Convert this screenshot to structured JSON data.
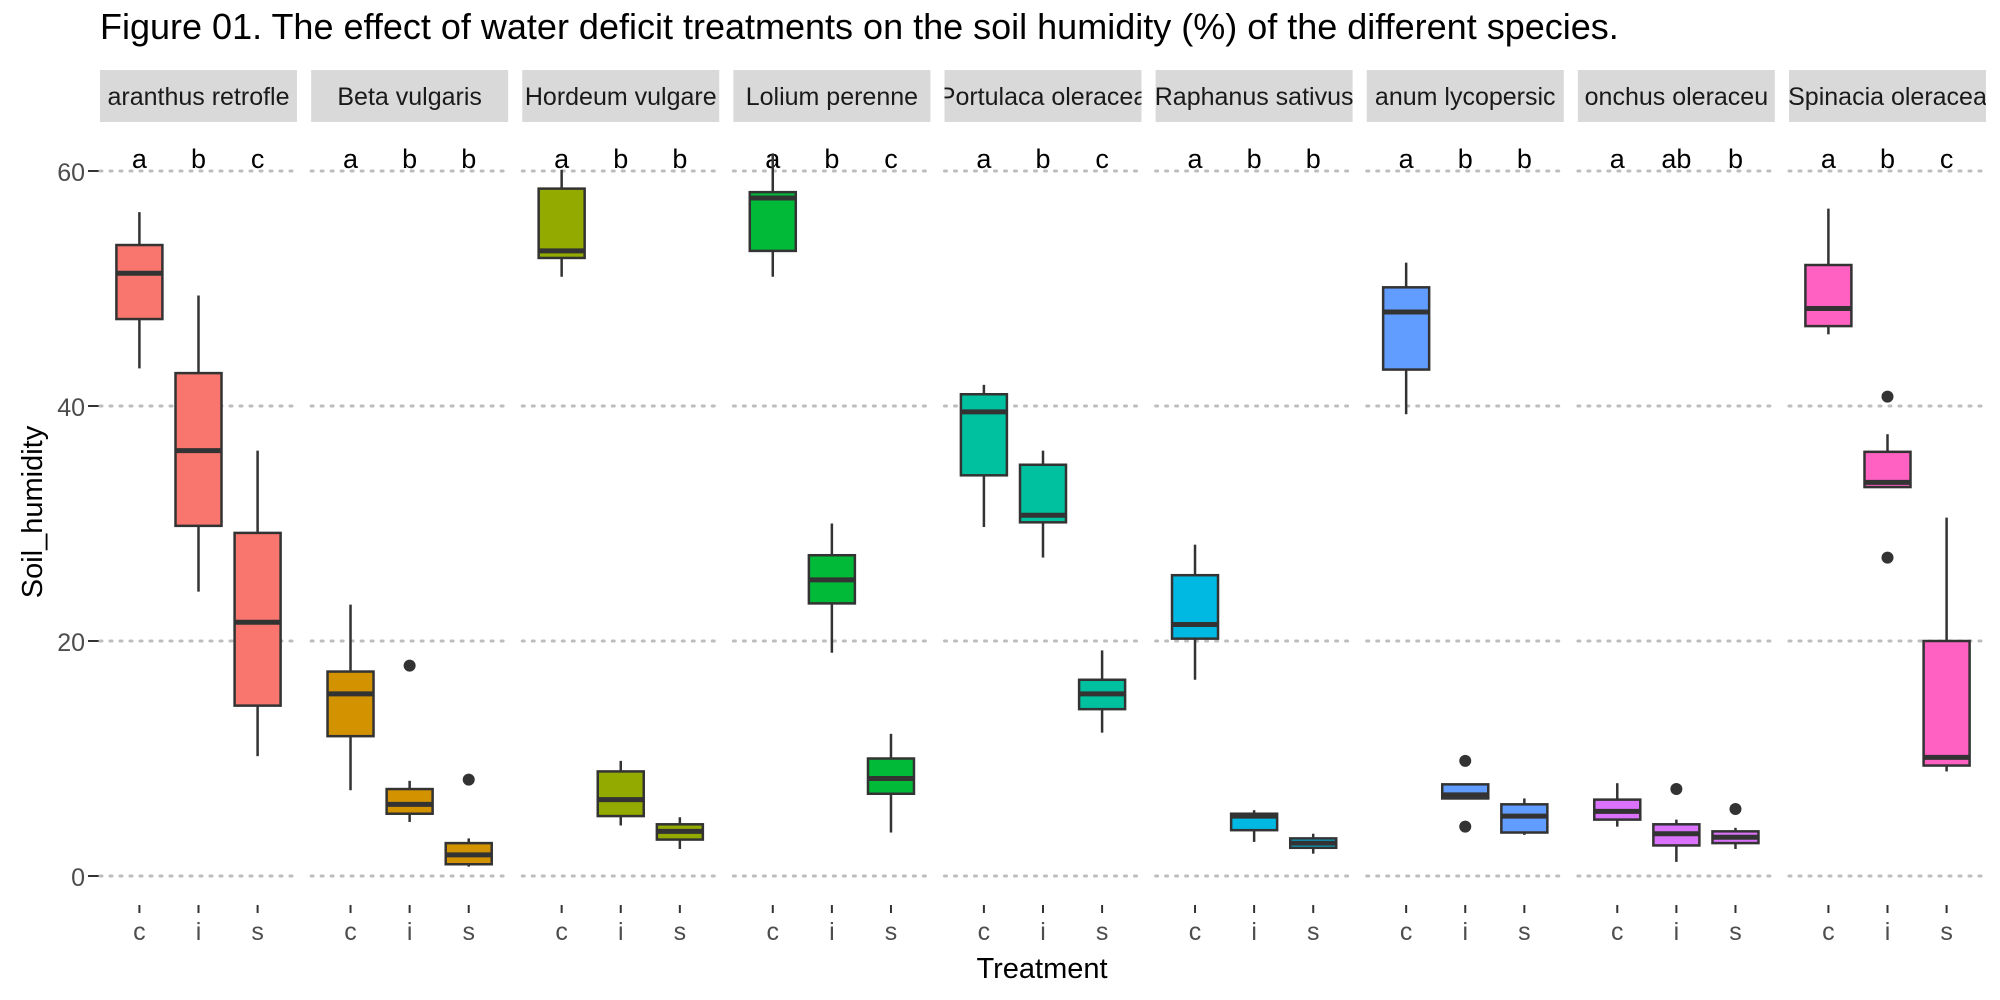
{
  "chart_data": {
    "type": "boxplot",
    "title": "Figure 01. The effect of water deficit treatments on the soil humidity (%) of the different species.",
    "xlabel": "Treatment",
    "ylabel": "Soil_humidity",
    "ylim": [
      -3,
      62
    ],
    "yticks": [
      0,
      20,
      40,
      60
    ],
    "grid": "major y gridlines only, dotted",
    "legend": "none",
    "categories": [
      "c",
      "i",
      "s"
    ],
    "panels": [
      {
        "species": "Amaranthus retroflexus",
        "strip_label": "aranthus retrofle",
        "color": "#F8766D",
        "letters": [
          "a",
          "b",
          "c"
        ],
        "boxes": [
          {
            "treatment": "c",
            "min": 43.2,
            "q1": 47.4,
            "median": 51.3,
            "q3": 53.7,
            "max": 56.5,
            "outliers": []
          },
          {
            "treatment": "i",
            "min": 24.2,
            "q1": 29.8,
            "median": 36.2,
            "q3": 42.8,
            "max": 49.4,
            "outliers": []
          },
          {
            "treatment": "s",
            "min": 10.2,
            "q1": 14.5,
            "median": 21.6,
            "q3": 29.2,
            "max": 36.2,
            "outliers": []
          }
        ]
      },
      {
        "species": "Beta vulgaris",
        "strip_label": "Beta vulgaris",
        "color": "#D39200",
        "letters": [
          "a",
          "b",
          "b"
        ],
        "boxes": [
          {
            "treatment": "c",
            "min": 7.3,
            "q1": 11.9,
            "median": 15.5,
            "q3": 17.4,
            "max": 23.1,
            "outliers": []
          },
          {
            "treatment": "i",
            "min": 4.6,
            "q1": 5.3,
            "median": 6.1,
            "q3": 7.4,
            "max": 8.1,
            "outliers": [
              17.9
            ]
          },
          {
            "treatment": "s",
            "min": 0.8,
            "q1": 1.0,
            "median": 1.8,
            "q3": 2.8,
            "max": 3.2,
            "outliers": [
              8.2
            ]
          }
        ]
      },
      {
        "species": "Hordeum vulgare",
        "strip_label": "Hordeum vulgare",
        "color": "#93AA00",
        "letters": [
          "a",
          "b",
          "b"
        ],
        "boxes": [
          {
            "treatment": "c",
            "min": 51.0,
            "q1": 52.6,
            "median": 53.2,
            "q3": 58.5,
            "max": 60.1,
            "outliers": []
          },
          {
            "treatment": "i",
            "min": 4.3,
            "q1": 5.1,
            "median": 6.5,
            "q3": 8.9,
            "max": 9.8,
            "outliers": []
          },
          {
            "treatment": "s",
            "min": 2.3,
            "q1": 3.1,
            "median": 3.8,
            "q3": 4.4,
            "max": 5.0,
            "outliers": []
          }
        ]
      },
      {
        "species": "Lolium perenne",
        "strip_label": "Lolium perenne",
        "color": "#00BA38",
        "letters": [
          "a",
          "b",
          "c"
        ],
        "boxes": [
          {
            "treatment": "c",
            "min": 51.0,
            "q1": 53.2,
            "median": 57.7,
            "q3": 58.2,
            "max": 61.5,
            "outliers": []
          },
          {
            "treatment": "i",
            "min": 19.0,
            "q1": 23.2,
            "median": 25.2,
            "q3": 27.3,
            "max": 30.0,
            "outliers": []
          },
          {
            "treatment": "s",
            "min": 3.7,
            "q1": 7.0,
            "median": 8.3,
            "q3": 10.0,
            "max": 12.1,
            "outliers": []
          }
        ]
      },
      {
        "species": "Portulaca oleracea",
        "strip_label": "Portulaca oleracea",
        "color": "#00C19F",
        "letters": [
          "a",
          "b",
          "c"
        ],
        "boxes": [
          {
            "treatment": "c",
            "min": 29.7,
            "q1": 34.1,
            "median": 39.5,
            "q3": 41.0,
            "max": 41.8,
            "outliers": []
          },
          {
            "treatment": "i",
            "min": 27.1,
            "q1": 30.1,
            "median": 30.7,
            "q3": 35.0,
            "max": 36.2,
            "outliers": []
          },
          {
            "treatment": "s",
            "min": 12.2,
            "q1": 14.2,
            "median": 15.5,
            "q3": 16.7,
            "max": 19.2,
            "outliers": []
          }
        ]
      },
      {
        "species": "Raphanus sativus",
        "strip_label": "Raphanus sativus",
        "color": "#00B9E3",
        "letters": [
          "a",
          "b",
          "b"
        ],
        "boxes": [
          {
            "treatment": "c",
            "min": 16.7,
            "q1": 20.2,
            "median": 21.4,
            "q3": 25.6,
            "max": 28.2,
            "outliers": []
          },
          {
            "treatment": "i",
            "min": 2.9,
            "q1": 3.9,
            "median": 5.1,
            "q3": 5.3,
            "max": 5.6,
            "outliers": []
          },
          {
            "treatment": "s",
            "min": 1.9,
            "q1": 2.4,
            "median": 2.8,
            "q3": 3.2,
            "max": 3.6,
            "outliers": []
          }
        ]
      },
      {
        "species": "Solanum lycopersicum",
        "strip_label": "anum lycopersic",
        "color": "#619CFF",
        "letters": [
          "a",
          "b",
          "b"
        ],
        "boxes": [
          {
            "treatment": "c",
            "min": 39.3,
            "q1": 43.1,
            "median": 48.0,
            "q3": 50.1,
            "max": 52.2,
            "outliers": []
          },
          {
            "treatment": "i",
            "min": 6.6,
            "q1": 6.6,
            "median": 6.9,
            "q3": 7.8,
            "max": 7.8,
            "outliers": [
              9.8,
              4.2
            ]
          },
          {
            "treatment": "s",
            "min": 3.5,
            "q1": 3.7,
            "median": 5.1,
            "q3": 6.1,
            "max": 6.6,
            "outliers": []
          }
        ]
      },
      {
        "species": "Sonchus oleraceus",
        "strip_label": "onchus oleraceu",
        "color": "#DB72FB",
        "letters": [
          "a",
          "ab",
          "b"
        ],
        "boxes": [
          {
            "treatment": "c",
            "min": 4.2,
            "q1": 4.8,
            "median": 5.5,
            "q3": 6.5,
            "max": 7.9,
            "outliers": []
          },
          {
            "treatment": "i",
            "min": 1.2,
            "q1": 2.6,
            "median": 3.6,
            "q3": 4.4,
            "max": 4.8,
            "outliers": [
              7.4
            ]
          },
          {
            "treatment": "s",
            "min": 2.3,
            "q1": 2.8,
            "median": 3.3,
            "q3": 3.8,
            "max": 4.1,
            "outliers": [
              5.7
            ]
          }
        ]
      },
      {
        "species": "Spinacia oleracea",
        "strip_label": "Spinacia oleracea",
        "color": "#FF61C3",
        "letters": [
          "a",
          "b",
          "c"
        ],
        "boxes": [
          {
            "treatment": "c",
            "min": 46.1,
            "q1": 46.8,
            "median": 48.3,
            "q3": 52.0,
            "max": 56.8,
            "outliers": []
          },
          {
            "treatment": "i",
            "min": 33.1,
            "q1": 33.1,
            "median": 33.5,
            "q3": 36.1,
            "max": 37.6,
            "outliers": [
              40.8,
              27.1
            ]
          },
          {
            "treatment": "s",
            "min": 8.9,
            "q1": 9.4,
            "median": 10.1,
            "q3": 20.0,
            "max": 30.5,
            "outliers": []
          }
        ]
      }
    ]
  }
}
